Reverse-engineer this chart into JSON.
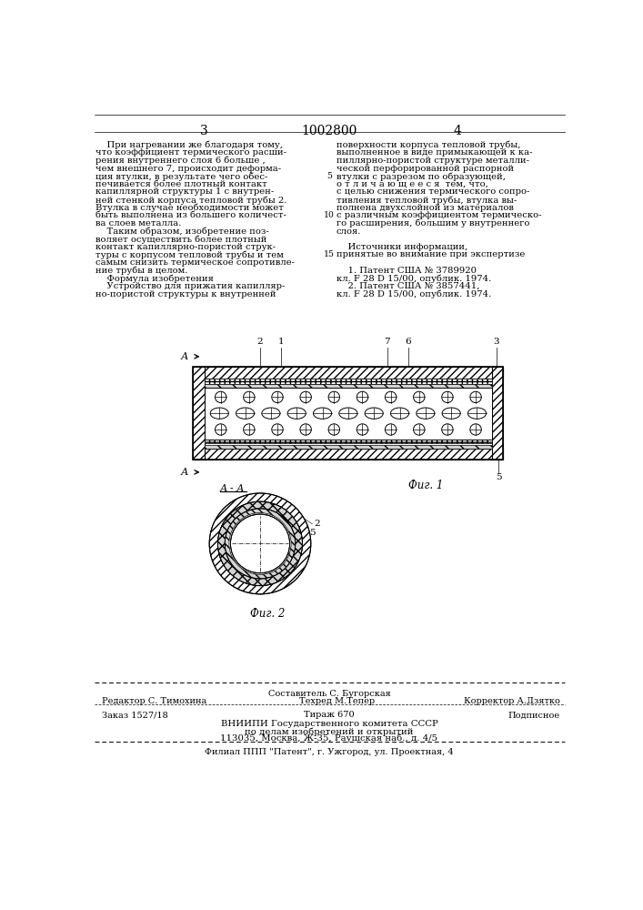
{
  "page_number_left": "3",
  "page_number_center": "1002800",
  "page_number_right": "4",
  "col_left_text": [
    "    При нагревании же благодаря тому,",
    "что коэффициент термического расши-",
    "рения внутреннего слоя 6 больше ,",
    "чем внешнего 7, происходит деформа-",
    "ция втулки, в результате чего обес-",
    "печивается более плотный контакт",
    "капиллярной структуры 1 с внутрен-",
    "ней стенкой корпуса тепловой трубы 2.",
    "Втулка в случае необходимости может",
    "быть выполнена из большего количест-",
    "ва слоев металла.",
    "    Таким образом, изобретение поз-",
    "воляет осуществить более плотный",
    "контакт капиллярно-пористой струк-",
    "туры с корпусом тепловой трубы и тем",
    "самым снизить термическое сопротивле-",
    "ние трубы в целом.",
    "    Формула изобретения",
    "    Устройство для прижатия капилляр-",
    "но-пористой структуры к внутренней"
  ],
  "col_right_text": [
    "поверхности корпуса тепловой трубы,",
    "выполненное в виде примыкающей к ка-",
    "пиллярно-пористой структуре металли-",
    "ческой перфорированной распорной",
    "втулки с разрезом по образующей,",
    "о т л и ч а ю щ е е с я  тем, что,",
    "с целью снижения термического сопро-",
    "тивления тепловой трубы, втулка вы-",
    "полнена двухслойной из материалов",
    "с различным коэффициентом термическо-",
    "го расширения, большим у внутреннего",
    "слоя.",
    "",
    "    Источники информации,",
    "принятые во внимание при экспертизе",
    "",
    "    1. Патент США № 3789920",
    "кл. F 28 D 15/00, опублик. 1974.",
    "    2. Патент США № 3857441,",
    "кл. F 28 D 15/00, опублик. 1974."
  ],
  "line_numbers": [
    "5",
    "10",
    "15"
  ],
  "line_number_rows": [
    5,
    10,
    15
  ],
  "fig1_label": "Фиг. 1",
  "fig2_label": "Фиг. 2",
  "footer_line1": "Составитель С. Бугорская",
  "footer_line2_left": "Редактор С. Тимохина",
  "footer_line2_mid": "Техред М.Тепер",
  "footer_line2_right": "Корректор А.Дзятко",
  "footer_line3_left": "Заказ 1527/18",
  "footer_line3_mid": "Тираж 670",
  "footer_line3_right": "Подписное",
  "footer_line4": "ВНИИПИ Государственного комитета СССР",
  "footer_line5": "по делам изобретений и открытий",
  "footer_line6": "113035, Москва, Ж-35, Раушская наб., д. 4/5",
  "footer_line7": "Филиал ППП \"Патент\", г. Ужгород, ул. Проектная, 4",
  "bg_color": "#ffffff",
  "text_color": "#000000",
  "font_size_body": 7.2,
  "font_size_header": 9,
  "font_size_footer": 7
}
